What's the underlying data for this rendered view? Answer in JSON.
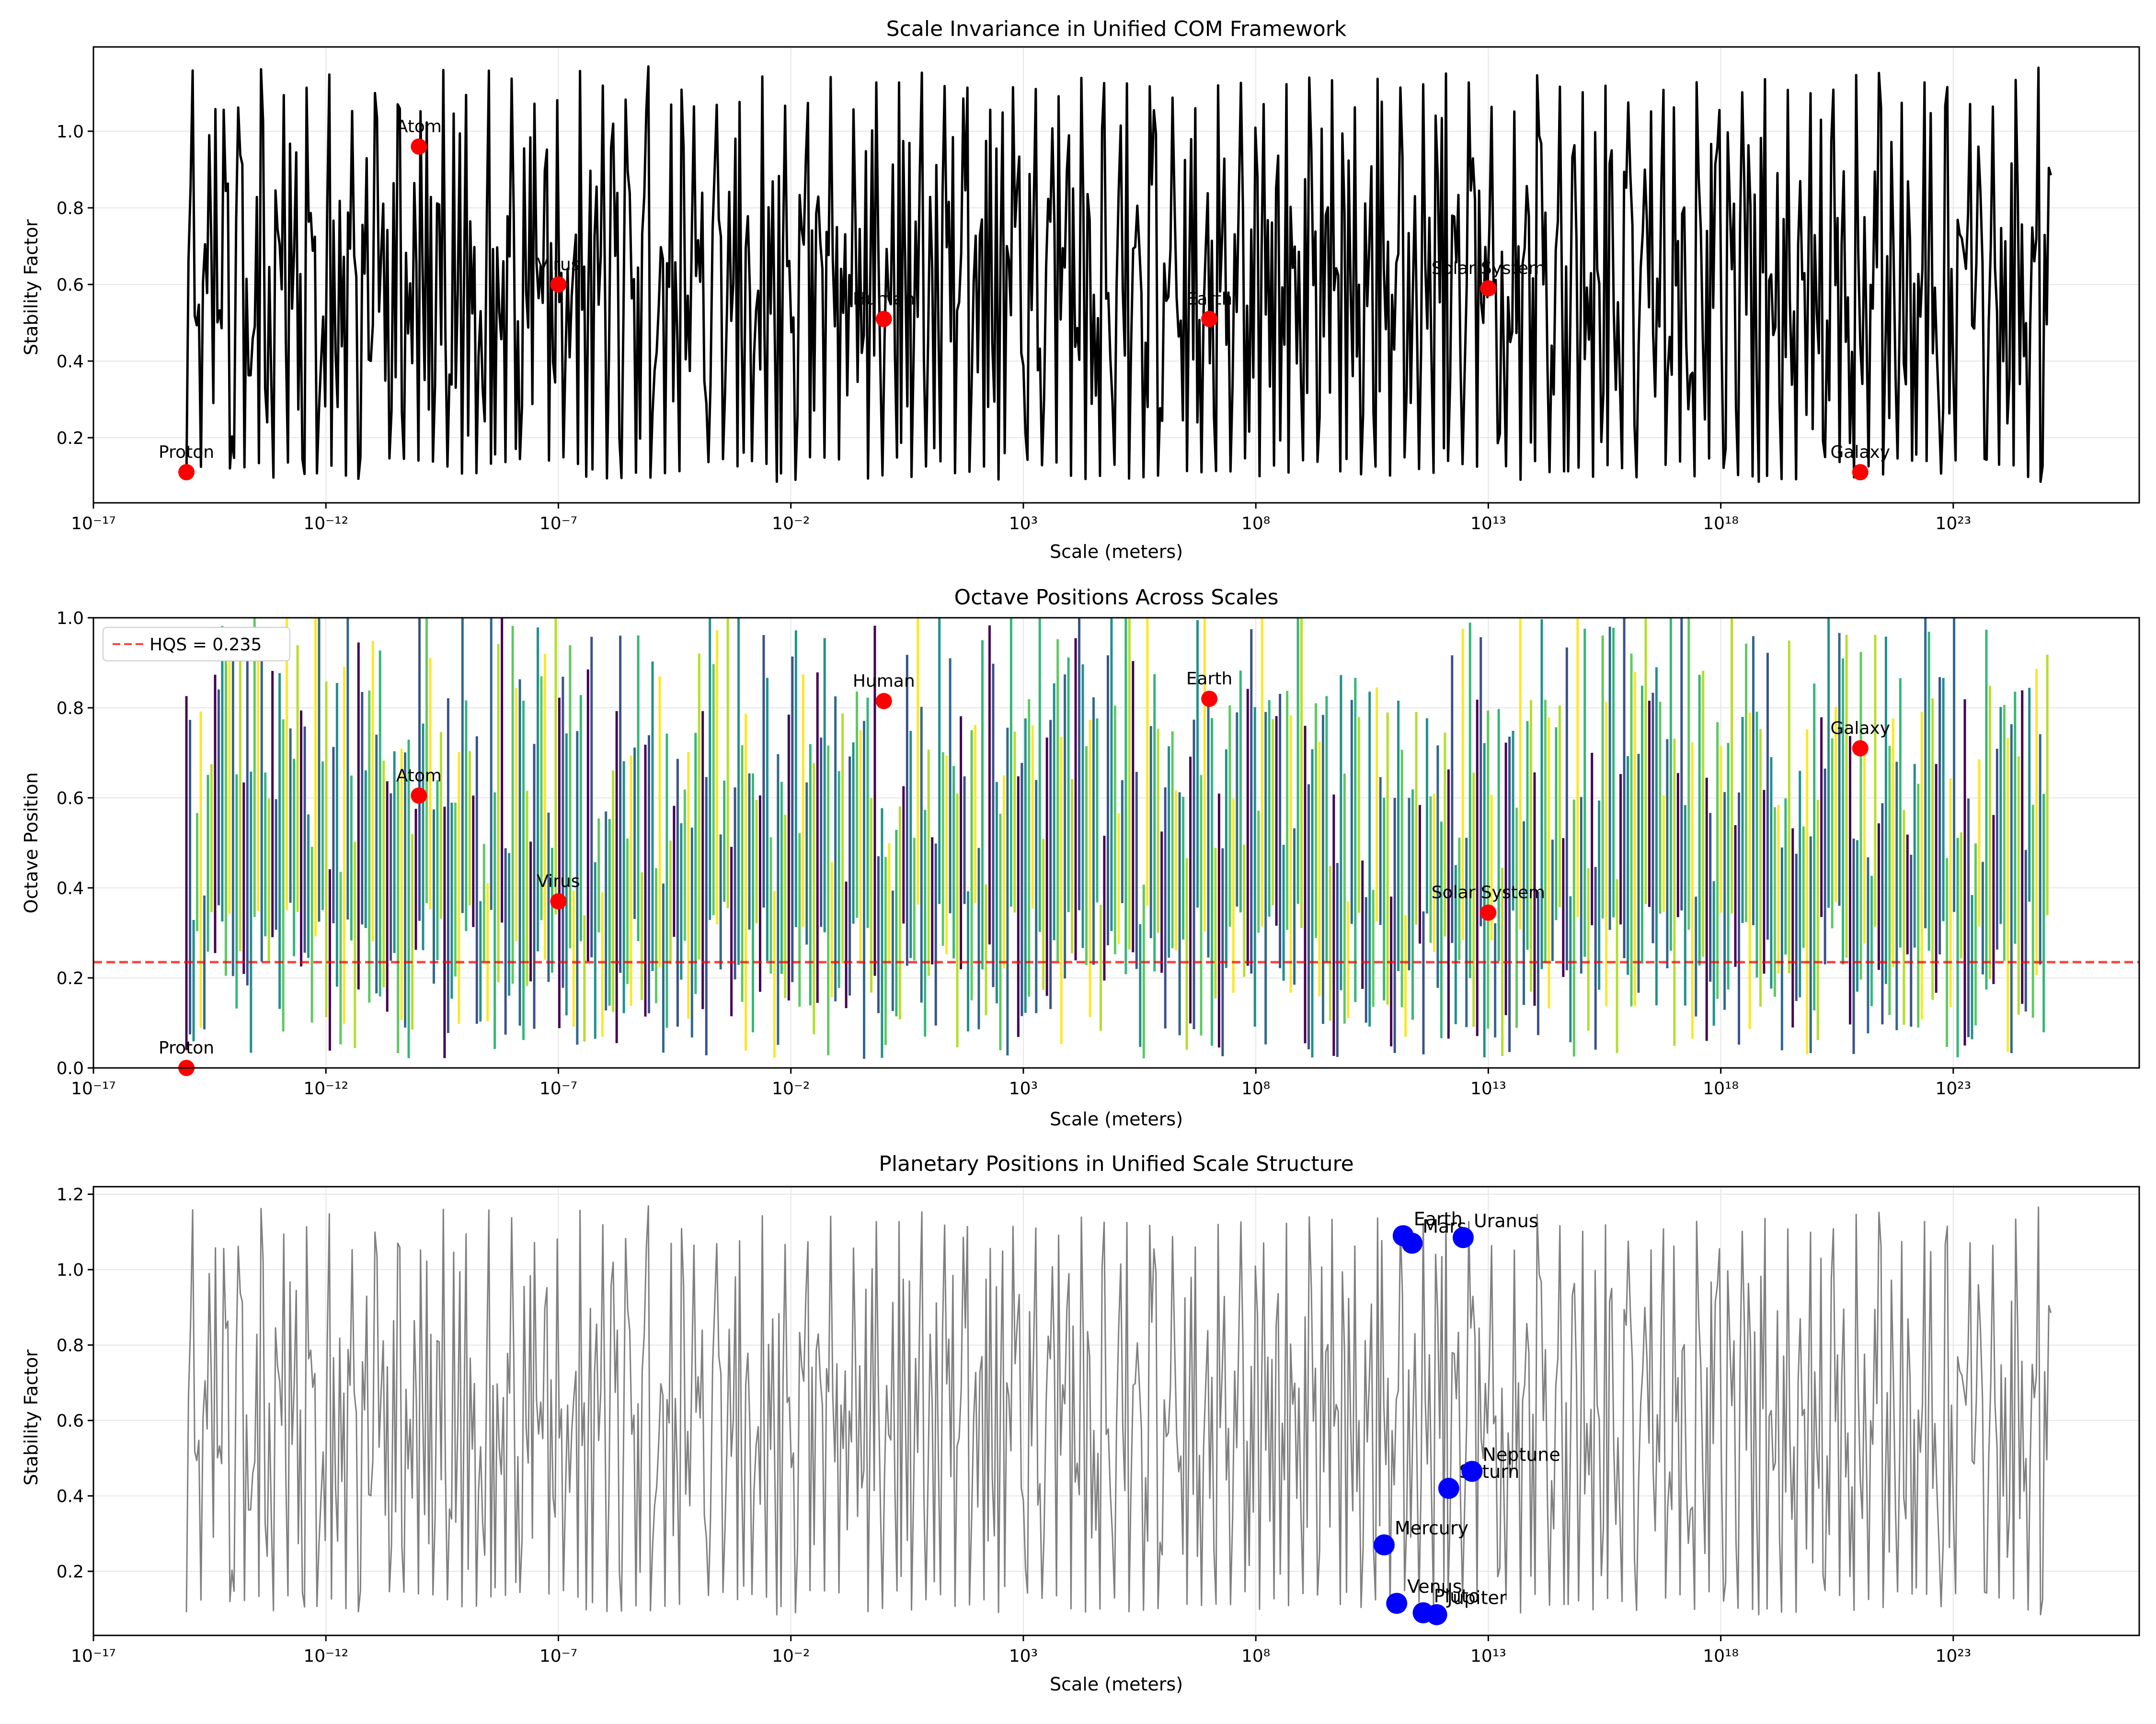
{
  "chart_data": [
    {
      "type": "line",
      "title": "Scale Invariance in Unified COM Framework",
      "xlabel": "Scale (meters)",
      "ylabel": "Stability Factor",
      "xscale": "log",
      "xlim_exp": [
        -17,
        27
      ],
      "ylim": [
        0.03,
        1.22
      ],
      "yticks": [
        0.2,
        0.4,
        0.6,
        0.8,
        1.0
      ],
      "ytick_labels": [
        "0.2",
        "0.4",
        "0.6",
        "0.8",
        "1.0"
      ],
      "xtick_exps": [
        -17,
        -12,
        -7,
        -2,
        3,
        8,
        13,
        18,
        23
      ],
      "xtick_labels": [
        "10⁻¹⁷",
        "10⁻¹²",
        "10⁻⁷",
        "10⁻²",
        "10³",
        "10⁸",
        "10¹³",
        "10¹⁸",
        "10²³"
      ],
      "grid": true,
      "series_desc": "dense oscillating curve over 10^-15 to 10^25 m, range ~0.09 to ~1.17",
      "curve_x_exp_range": [
        -15,
        25.1
      ],
      "curve_color": "#000000",
      "markers": [
        {
          "label": "Proton",
          "x_exp": -15,
          "y": 0.11
        },
        {
          "label": "Atom",
          "x_exp": -10,
          "y": 0.96
        },
        {
          "label": "Virus",
          "x_exp": -7,
          "y": 0.6
        },
        {
          "label": "Human",
          "x_exp": 0,
          "y": 0.51
        },
        {
          "label": "Earth",
          "x_exp": 7,
          "y": 0.51
        },
        {
          "label": "Solar System",
          "x_exp": 13,
          "y": 0.59
        },
        {
          "label": "Galaxy",
          "x_exp": 21,
          "y": 0.11
        }
      ],
      "marker_color": "#ff0000"
    },
    {
      "type": "line",
      "title": "Octave Positions Across Scales",
      "xlabel": "Scale (meters)",
      "ylabel": "Octave Position",
      "xscale": "log",
      "xlim_exp": [
        -17,
        27
      ],
      "ylim": [
        0.0,
        1.0
      ],
      "yticks": [
        0.0,
        0.2,
        0.4,
        0.6,
        0.8,
        1.0
      ],
      "ytick_labels": [
        "0.0",
        "0.2",
        "0.4",
        "0.6",
        "0.8",
        "1.0"
      ],
      "xtick_exps": [
        -17,
        -12,
        -7,
        -2,
        3,
        8,
        13,
        18,
        23
      ],
      "xtick_labels": [
        "10⁻¹⁷",
        "10⁻¹²",
        "10⁻⁷",
        "10⁻²",
        "10³",
        "10⁸",
        "10¹³",
        "10¹⁸",
        "10²³"
      ],
      "grid": true,
      "series_desc": "dense vertical segments colored by viridis colormap over 10^-15 to 10^25 m",
      "curve_x_exp_range": [
        -15,
        25.1
      ],
      "hline": {
        "label": "HQS = 0.235",
        "y": 0.235,
        "color": "#ff0000"
      },
      "legend": "top-left",
      "markers": [
        {
          "label": "Proton",
          "x_exp": -15,
          "y": 0.0
        },
        {
          "label": "Atom",
          "x_exp": -10,
          "y": 0.605
        },
        {
          "label": "Virus",
          "x_exp": -7,
          "y": 0.37
        },
        {
          "label": "Human",
          "x_exp": 0,
          "y": 0.815
        },
        {
          "label": "Earth",
          "x_exp": 7,
          "y": 0.82
        },
        {
          "label": "Solar System",
          "x_exp": 13,
          "y": 0.345
        },
        {
          "label": "Galaxy",
          "x_exp": 21,
          "y": 0.71
        }
      ],
      "marker_color": "#ff0000"
    },
    {
      "type": "scatter",
      "title": "Planetary Positions in Unified Scale Structure",
      "xlabel": "Scale (meters)",
      "ylabel": "Stability Factor",
      "xscale": "log",
      "xlim_exp": [
        -17,
        27
      ],
      "ylim": [
        0.03,
        1.22
      ],
      "yticks": [
        0.2,
        0.4,
        0.6,
        0.8,
        1.0,
        1.2
      ],
      "ytick_labels": [
        "0.2",
        "0.4",
        "0.6",
        "0.8",
        "1.0",
        "1.2"
      ],
      "xtick_exps": [
        -17,
        -12,
        -7,
        -2,
        3,
        8,
        13,
        18,
        23
      ],
      "xtick_labels": [
        "10⁻¹⁷",
        "10⁻¹²",
        "10⁻⁷",
        "10⁻²",
        "10³",
        "10⁸",
        "10¹³",
        "10¹⁸",
        "10²³"
      ],
      "grid": true,
      "series_desc": "same oscillating stability curve drawn in gray as background",
      "curve_x_exp_range": [
        -15,
        25.1
      ],
      "curve_color": "#808080",
      "markers": [
        {
          "label": "Mercury",
          "x_exp": 10.76,
          "y": 0.27
        },
        {
          "label": "Venus",
          "x_exp": 11.03,
          "y": 0.115
        },
        {
          "label": "Earth",
          "x_exp": 11.17,
          "y": 1.09
        },
        {
          "label": "Mars",
          "x_exp": 11.36,
          "y": 1.07
        },
        {
          "label": "Jupiter",
          "x_exp": 11.89,
          "y": 0.085
        },
        {
          "label": "Saturn",
          "x_exp": 12.15,
          "y": 0.42
        },
        {
          "label": "Uranus",
          "x_exp": 12.46,
          "y": 1.085
        },
        {
          "label": "Neptune",
          "x_exp": 12.65,
          "y": 0.465
        },
        {
          "label": "Pluto",
          "x_exp": 11.6,
          "y": 0.09
        }
      ],
      "marker_color": "#0000ff"
    }
  ]
}
